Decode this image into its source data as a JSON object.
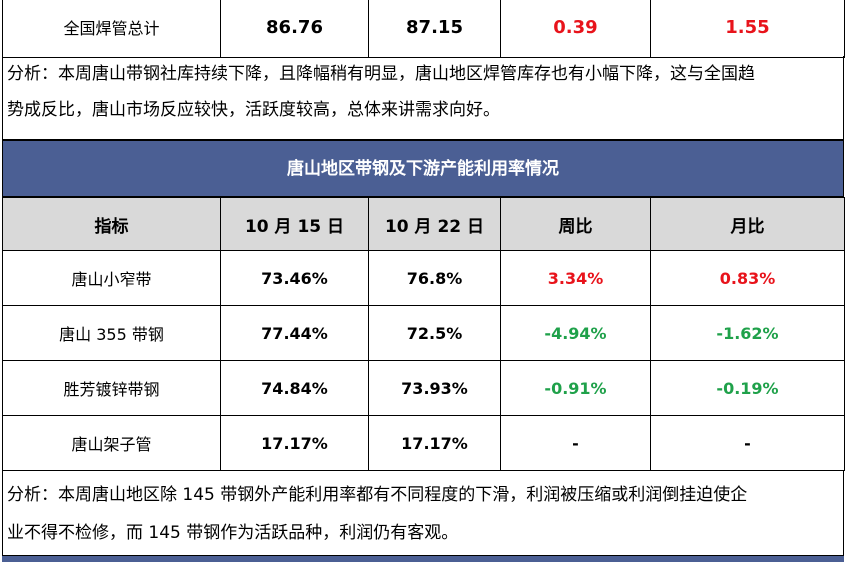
{
  "top_row": {
    "name": "全国焊管总计",
    "v1": "86.76",
    "v2": "87.15",
    "weekly": "0.39",
    "monthly": "1.55"
  },
  "analysis_1": {
    "line1": "分析：本周唐山带钢社库持续下降，且降幅稍有明显，唐山地区焊管库存也有小幅下降，这与全国趋",
    "line2": "势成反比，唐山市场反应较快，活跃度较高，总体来讲需求向好。"
  },
  "section_title": "唐山地区带钢及下游产能利用率情况",
  "table": {
    "headers": [
      "指标",
      "10 月 15 日",
      "10 月 22 日",
      "周比",
      "月比"
    ],
    "rows": [
      {
        "name": "唐山小窄带",
        "v1": "73.46%",
        "v2": "76.8%",
        "weekly": "3.34%",
        "monthly": "0.83%",
        "weekly_color": "red",
        "monthly_color": "red"
      },
      {
        "name": "唐山 355 带钢",
        "v1": "77.44%",
        "v2": "72.5%",
        "weekly": "-4.94%",
        "monthly": "-1.62%",
        "weekly_color": "green",
        "monthly_color": "green"
      },
      {
        "name": "胜芳镀锌带钢",
        "v1": "74.84%",
        "v2": "73.93%",
        "weekly": "-0.91%",
        "monthly": "-0.19%",
        "weekly_color": "green",
        "monthly_color": "green"
      },
      {
        "name": "唐山架子管",
        "v1": "17.17%",
        "v2": "17.17%",
        "weekly": "-",
        "monthly": "-",
        "weekly_color": "black",
        "monthly_color": "black"
      }
    ]
  },
  "analysis_2": {
    "line1": "分析：本周唐山地区除 145 带钢外产能利用率都有不同程度的下滑，利润被压缩或利润倒挂迫使企",
    "line2": "业不得不检修，而 145 带钢作为活跃品种，利润仍有客观。"
  },
  "colors": {
    "header_bar": "#4b5f94",
    "header_row": "#d9d9d9",
    "up": "#e8131b",
    "down": "#1fa14a"
  }
}
